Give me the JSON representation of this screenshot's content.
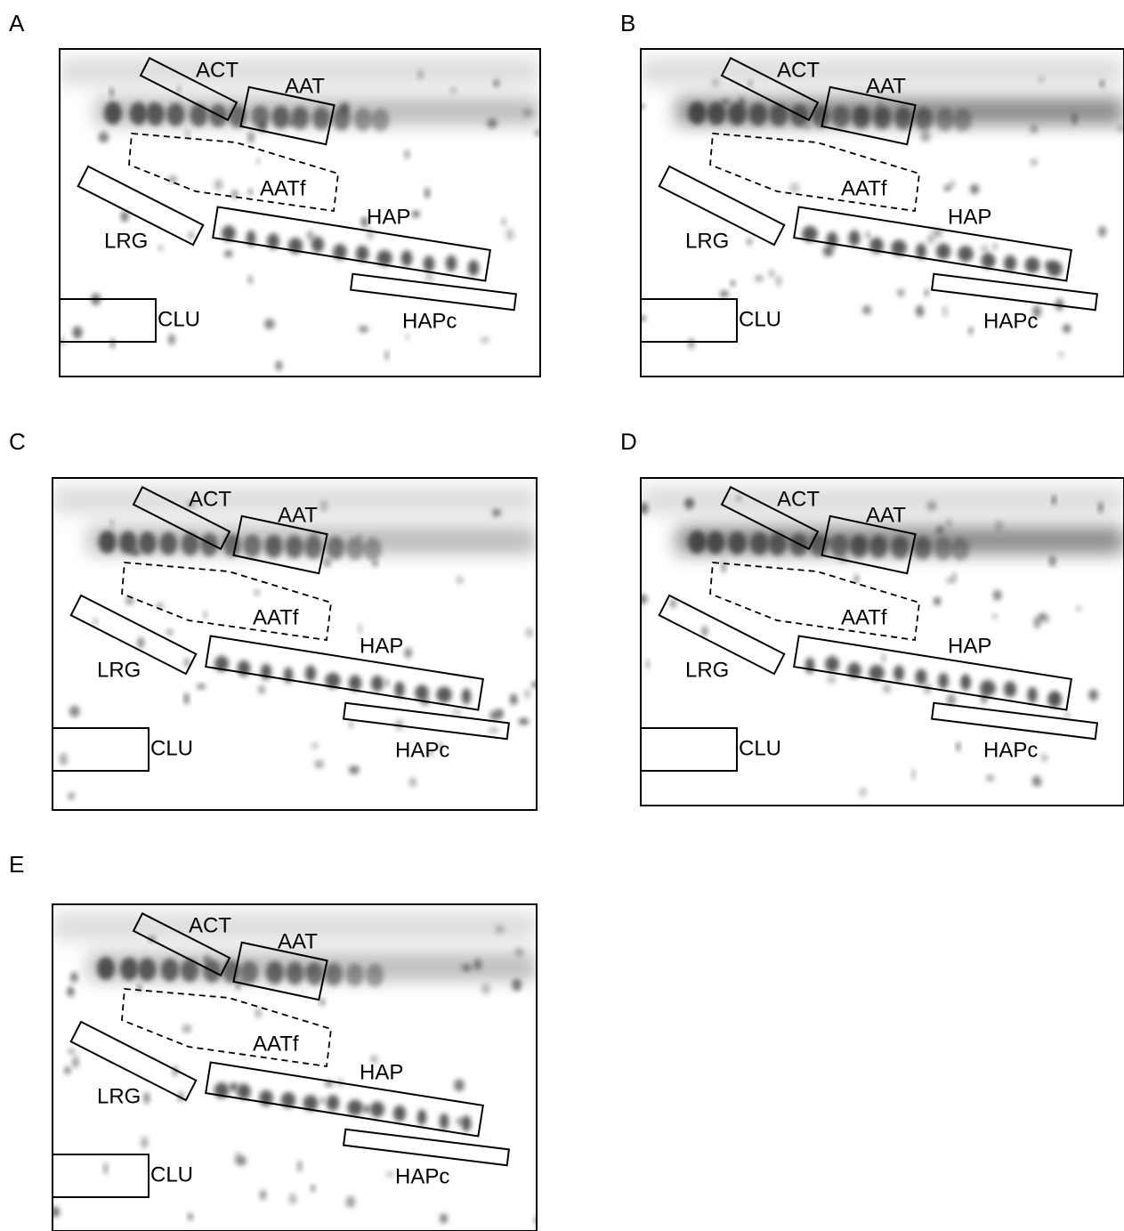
{
  "panels": [
    {
      "letter": "A",
      "labels": {
        "act": "ACT",
        "aat": "AAT",
        "aatf": "AATf",
        "lrg": "LRG",
        "hap": "HAP",
        "hapc": "HAPc",
        "clu": "CLU"
      }
    },
    {
      "letter": "B",
      "labels": {
        "act": "ACT",
        "aat": "AAT",
        "aatf": "AATf",
        "lrg": "LRG",
        "hap": "HAP",
        "hapc": "HAPc",
        "clu": "CLU"
      }
    },
    {
      "letter": "C",
      "labels": {
        "act": "ACT",
        "aat": "AAT",
        "aatf": "AATf",
        "lrg": "LRG",
        "hap": "HAP",
        "hapc": "HAPc",
        "clu": "CLU"
      }
    },
    {
      "letter": "D",
      "labels": {
        "act": "ACT",
        "aat": "AAT",
        "aatf": "AATf",
        "lrg": "LRG",
        "hap": "HAP",
        "hapc": "HAPc",
        "clu": "CLU"
      }
    },
    {
      "letter": "E",
      "labels": {
        "act": "ACT",
        "aat": "AAT",
        "aatf": "AATf",
        "lrg": "LRG",
        "hap": "HAP",
        "hapc": "HAPc",
        "clu": "CLU"
      }
    }
  ]
}
